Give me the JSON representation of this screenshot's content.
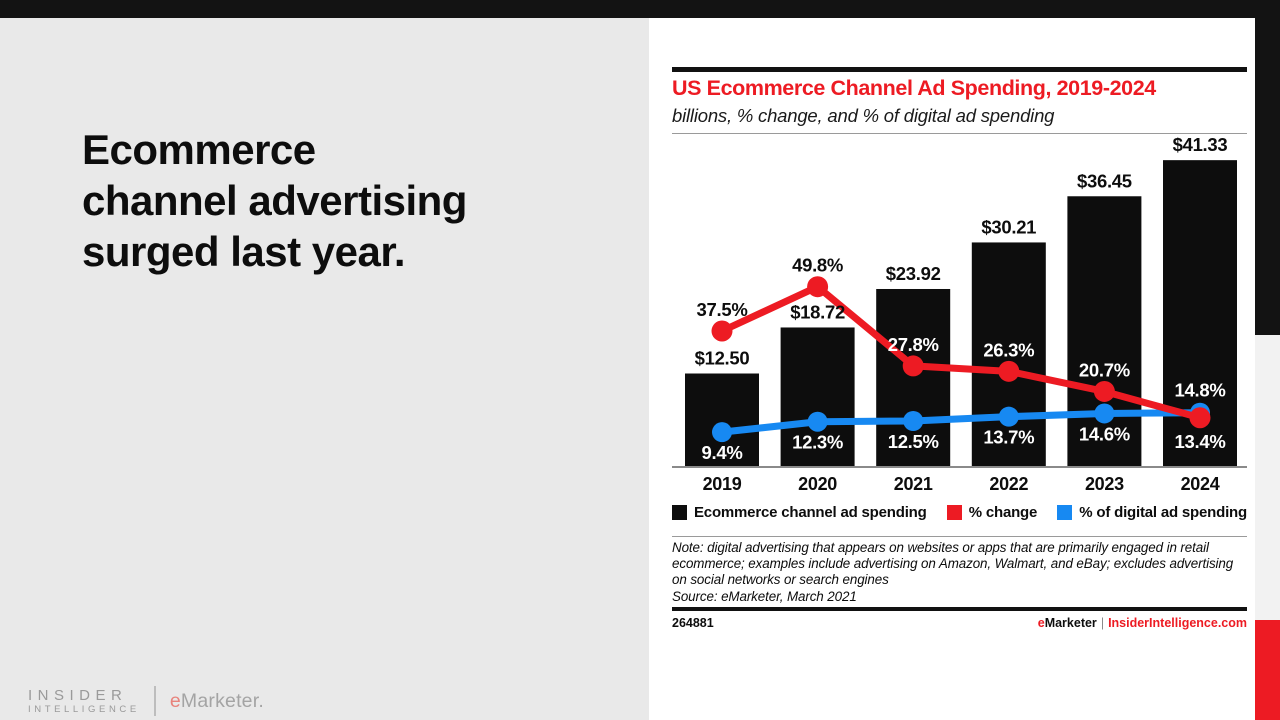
{
  "slide": {
    "headline_lines": [
      "Ecommerce",
      "channel advertising",
      "surged last year."
    ],
    "watermark": {
      "insider": "INSIDER",
      "intelligence": "INTELLIGENCE",
      "emarketer_e": "e",
      "emarketer_rest": "Marketer."
    }
  },
  "panel": {
    "title": "US Ecommerce Channel Ad Spending, 2019-2024",
    "subtitle": "billions, % change, and % of digital ad spending",
    "note": "Note: digital advertising that appears on websites or apps that are primarily engaged in retail ecommerce; examples include advertising on Amazon, Walmart, and eBay; excludes advertising on social networks or search engines",
    "source": "Source: eMarketer, March 2021",
    "chart_id": "264881",
    "brand": {
      "e": "e",
      "rest": "Marketer",
      "divider": "|",
      "site": "InsiderIntelligence.com"
    }
  },
  "chart_data": {
    "type": "bar",
    "title": "US Ecommerce Channel Ad Spending, 2019-2024",
    "subtitle": "billions, % change, and % of digital ad spending",
    "categories": [
      "2019",
      "2020",
      "2021",
      "2022",
      "2023",
      "2024"
    ],
    "series": [
      {
        "name": "Ecommerce channel ad spending",
        "kind": "bar",
        "unit": "billions USD",
        "values": [
          12.5,
          18.72,
          23.92,
          30.21,
          36.45,
          41.33
        ],
        "labels": [
          "$12.50",
          "$18.72",
          "$23.92",
          "$30.21",
          "$36.45",
          "$41.33"
        ],
        "color": "#0d0d0d"
      },
      {
        "name": "% change",
        "kind": "line",
        "unit": "percent",
        "values": [
          37.5,
          49.8,
          27.8,
          26.3,
          20.7,
          13.4
        ],
        "labels": [
          "37.5%",
          "49.8%",
          "27.8%",
          "26.3%",
          "20.7%",
          "13.4%"
        ],
        "color": "#ed1b23"
      },
      {
        "name": "% of digital ad spending",
        "kind": "line",
        "unit": "percent",
        "values": [
          9.4,
          12.3,
          12.5,
          13.7,
          14.6,
          14.8
        ],
        "labels": [
          "9.4%",
          "12.3%",
          "12.5%",
          "13.7%",
          "14.6%",
          "14.8%"
        ],
        "color": "#1789f2"
      }
    ],
    "legend_position": "bottom",
    "grid": false
  },
  "colors": {
    "accent_red": "#ed1b23",
    "accent_blue": "#1789f2",
    "bar_black": "#0d0d0d",
    "top_bar_black": "#131313",
    "left_panel_gray": "#e9e9e9",
    "rail_gray": "#f2f2f2",
    "axis_gray": "#8a8a8a"
  }
}
